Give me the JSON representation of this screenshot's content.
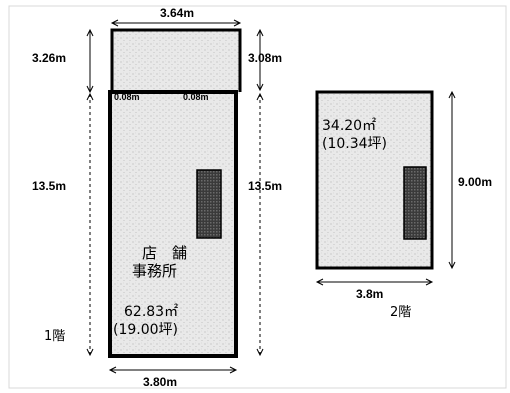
{
  "floor1": {
    "width_top": "3.64m",
    "upper_left_height": "3.26m",
    "upper_right_height": "3.08m",
    "offset_left": "0.08m",
    "offset_right": "0.08m",
    "main_left_height": "13.5m",
    "main_right_height": "13.5m",
    "width_bottom": "3.80m",
    "room_name_line1": "店　舗",
    "room_name_line2": "事務所",
    "area_m2": "62.83㎡",
    "area_tsubo": "(19.00坪)",
    "floor_label": "1階"
  },
  "floor2": {
    "area_m2": "34.20㎡",
    "area_tsubo": "(10.34坪)",
    "height": "9.00m",
    "width": "3.8m",
    "floor_label": "2階"
  },
  "colors": {
    "wall": "#000000",
    "floor_fill": "#ececec",
    "frame": "#d8d8d8"
  }
}
